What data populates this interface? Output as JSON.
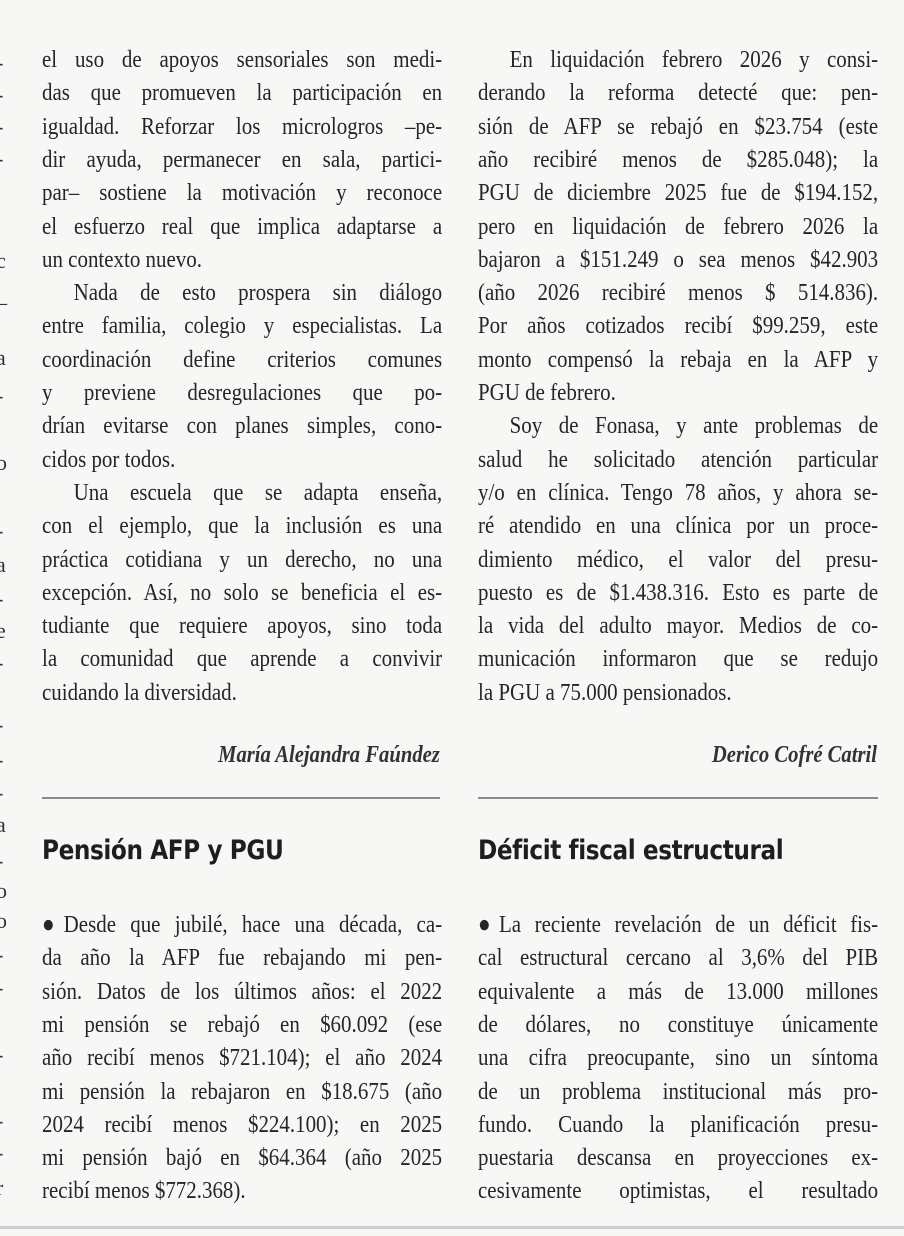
{
  "edge_fragments": [
    "-",
    "-",
    "-",
    "-",
    "c",
    "_",
    "a",
    "-",
    "o",
    ".",
    "-",
    "a",
    "-",
    "e",
    "-",
    "-",
    "-",
    "-",
    "a",
    "-",
    "o",
    "o",
    "-",
    "-",
    "-",
    ".",
    "-",
    "-",
    "r"
  ],
  "top_left": {
    "paragraphs": [
      {
        "indent": false,
        "lines": [
          "el uso de apoyos sensoriales son medi-",
          "das que promueven la participación en",
          "igualdad. Reforzar los micrologros –pe-",
          "dir ayuda, permanecer en sala, partici-",
          "par– sostiene la motivación y reconoce",
          "el esfuerzo real que implica adaptarse a",
          "un contexto nuevo."
        ]
      },
      {
        "indent": true,
        "lines": [
          "Nada de esto prospera sin diálogo",
          "entre familia, colegio y especialistas. La",
          "coordinación define criterios comunes",
          "y previene desregulaciones que po-",
          "drían evitarse con planes simples, cono-",
          "cidos por todos."
        ]
      },
      {
        "indent": true,
        "lines": [
          "Una escuela que se adapta enseña,",
          "con el ejemplo, que la inclusión es una",
          "práctica cotidiana y un derecho, no una",
          "excepción. Así, no solo se beneficia el es-",
          "tudiante que requiere apoyos, sino toda",
          "la comunidad que aprende a convivir",
          "cuidando la diversidad."
        ]
      }
    ],
    "signature": "María Alejandra Faúndez"
  },
  "top_right": {
    "paragraphs": [
      {
        "indent": true,
        "lines": [
          "En liquidación febrero 2026 y consi-",
          "derando la reforma detecté que: pen-",
          "sión de AFP se rebajó en $23.754 (este",
          "año recibiré menos de $285.048); la",
          "PGU de diciembre 2025 fue de $194.152,",
          "pero en liquidación de febrero 2026 la",
          "bajaron a $151.249 o sea menos $42.903",
          "(año 2026 recibiré menos $ 514.836).",
          "Por años cotizados recibí $99.259, este",
          "monto compensó la rebaja en la AFP y",
          "PGU de febrero."
        ]
      },
      {
        "indent": true,
        "lines": [
          "Soy de Fonasa, y ante problemas de",
          "salud he solicitado atención particular",
          "y/o en clínica. Tengo 78 años, y ahora se-",
          "ré atendido en una clínica por un proce-",
          "dimiento médico, el valor del presu-",
          "puesto es de $1.438.316. Esto es parte de",
          "la vida del adulto mayor. Medios de co-",
          "municación informaron que se redujo",
          "la PGU a 75.000 pensionados."
        ]
      }
    ],
    "signature": "Derico Cofré Catril"
  },
  "bottom_left": {
    "title": "Pensión AFP y PGU",
    "paragraphs": [
      {
        "indent": false,
        "lines": [
          "●Desde que jubilé, hace una década, ca-",
          "da año la AFP fue rebajando mi pen-",
          "sión. Datos de los últimos años: el 2022",
          "mi pensión se rebajó en $60.092 (ese",
          "año recibí menos $721.104); el año 2024",
          "mi pensión la rebajaron en $18.675 (año",
          "2024 recibí menos $224.100); en 2025",
          "mi pensión bajó en $64.364 (año 2025",
          "recibí menos $772.368)."
        ]
      }
    ]
  },
  "bottom_right": {
    "title": "Déficit fiscal estructural",
    "paragraphs": [
      {
        "indent": false,
        "continues": true,
        "lines": [
          "●La reciente revelación de un déficit fis-",
          "cal estructural cercano al 3,6% del PIB",
          "equivalente a más de 13.000 millones",
          "de dólares, no constituye únicamente",
          "una cifra preocupante, sino un síntoma",
          "de un problema institucional más pro-",
          "fundo. Cuando la planificación presu-",
          "puestaria descansa en proyecciones ex-",
          "cesivamente optimistas, el resultado"
        ]
      }
    ]
  }
}
